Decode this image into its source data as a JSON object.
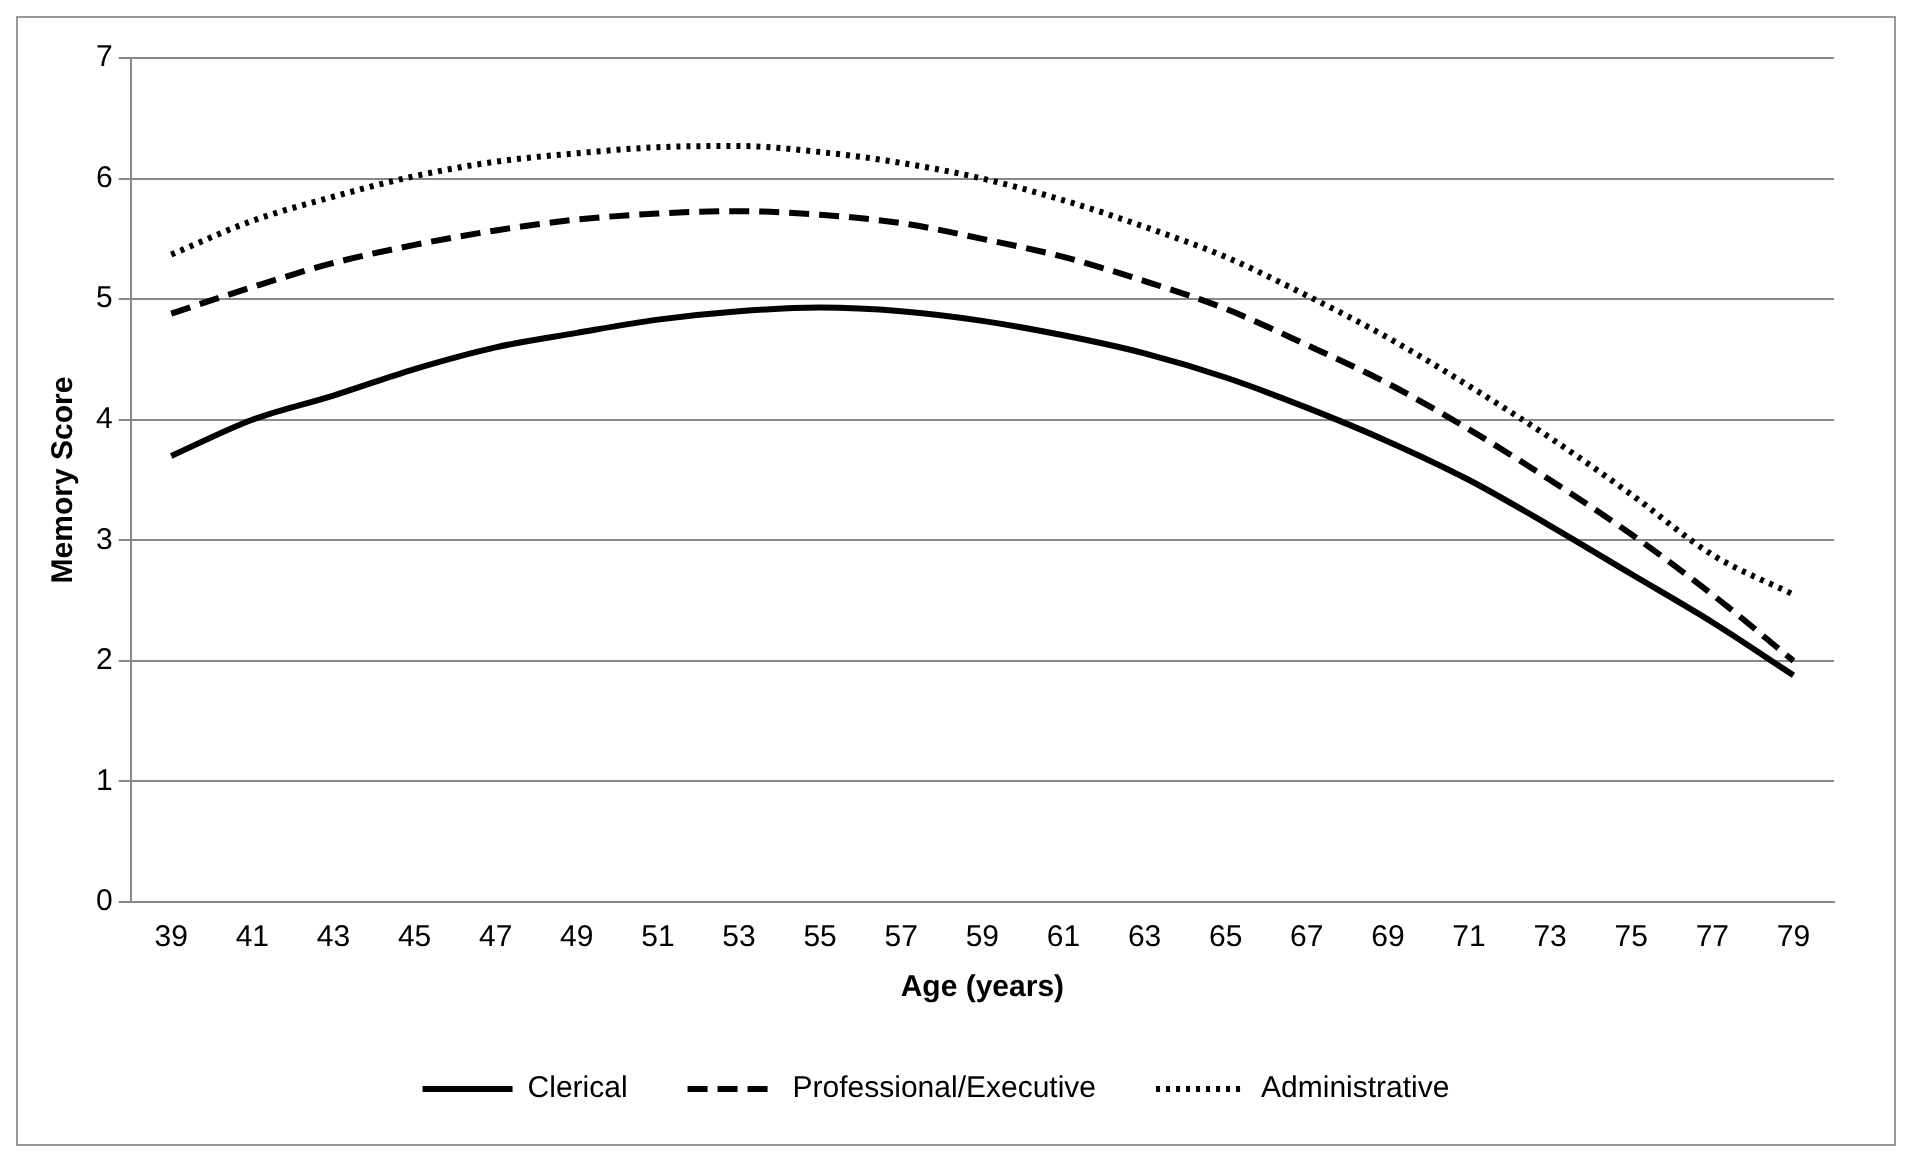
{
  "chart_data": {
    "type": "line",
    "xlabel": "Age (years)",
    "ylabel": "Memory Score",
    "categories": [
      "39",
      "41",
      "43",
      "45",
      "47",
      "49",
      "51",
      "53",
      "55",
      "57",
      "59",
      "61",
      "63",
      "65",
      "67",
      "69",
      "71",
      "73",
      "75",
      "77",
      "79"
    ],
    "series": [
      {
        "name": "Clerical",
        "color": "#000000",
        "line_style": "solid",
        "values": [
          3.7,
          4.0,
          4.2,
          4.42,
          4.6,
          4.72,
          4.83,
          4.9,
          4.93,
          4.9,
          4.82,
          4.7,
          4.55,
          4.35,
          4.1,
          3.82,
          3.5,
          3.12,
          2.72,
          2.32,
          1.88
        ]
      },
      {
        "name": "Professional/Executive",
        "color": "#000000",
        "line_style": "dashed",
        "values": [
          4.88,
          5.1,
          5.3,
          5.45,
          5.57,
          5.66,
          5.71,
          5.73,
          5.7,
          5.63,
          5.5,
          5.35,
          5.15,
          4.92,
          4.62,
          4.3,
          3.92,
          3.5,
          3.05,
          2.55,
          2.0
        ]
      },
      {
        "name": "Administrative",
        "color": "#000000",
        "line_style": "dotted",
        "values": [
          5.37,
          5.65,
          5.85,
          6.02,
          6.14,
          6.21,
          6.26,
          6.27,
          6.22,
          6.13,
          6.0,
          5.82,
          5.6,
          5.35,
          5.03,
          4.68,
          4.28,
          3.85,
          3.38,
          2.88,
          2.55
        ]
      }
    ],
    "ylim": [
      0,
      7
    ],
    "yticks": [
      0,
      1,
      2,
      3,
      4,
      5,
      6,
      7
    ],
    "grid": "y",
    "legend": "bottom",
    "marker": "none"
  }
}
